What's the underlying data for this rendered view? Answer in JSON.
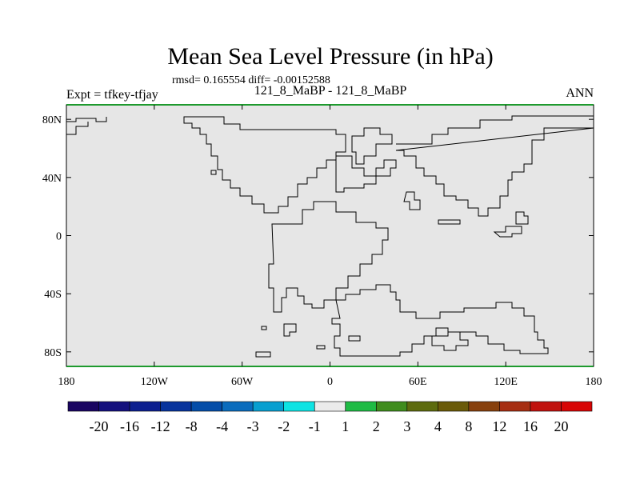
{
  "title": "Mean Sea Level Pressure (in hPa)",
  "stats_text": "rmsd= 0.165554 diff= -0.00152588",
  "subtitle": "121_8_MaBP - 121_8_MaBP",
  "experiment_label": "Expt = tfkey-tfjay",
  "season": "ANN",
  "map": {
    "projection": "cylindrical equidistant",
    "lon_range": [
      -180,
      180
    ],
    "lat_range": [
      -90,
      90
    ],
    "fill_color": "#e6e6e6",
    "coastline_color": "#000000",
    "x_tick_labels": [
      "180",
      "120W",
      "60W",
      "0",
      "60E",
      "120E",
      "180"
    ],
    "y_tick_labels": [
      "80N",
      "40N",
      "0",
      "40S",
      "80S"
    ]
  },
  "colorbar": {
    "labels": [
      "-20",
      "-16",
      "-12",
      "-8",
      "-4",
      "-3",
      "-2",
      "-1",
      "1",
      "2",
      "3",
      "4",
      "8",
      "12",
      "16",
      "20"
    ],
    "colors": [
      "#1a0561",
      "#14107d",
      "#0c1f8f",
      "#07339c",
      "#044da8",
      "#0a6cbd",
      "#089fd0",
      "#0ee3e3",
      "#ebebeb",
      "#1fbb44",
      "#3f8c1d",
      "#5d6b0e",
      "#6a5a09",
      "#87400d",
      "#a62e12",
      "#c0120e",
      "#d70505"
    ]
  }
}
